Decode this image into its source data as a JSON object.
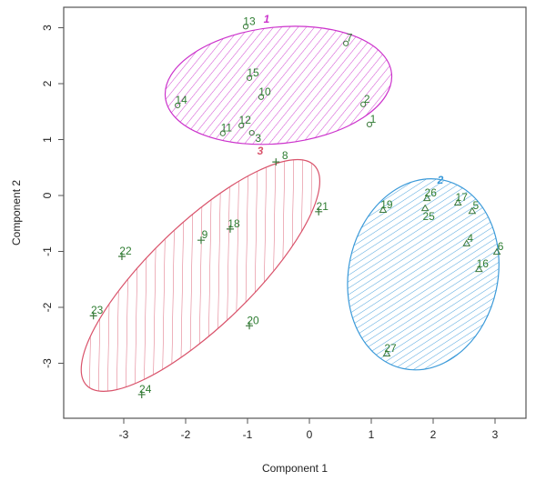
{
  "chart_data": {
    "type": "scatter",
    "title": "",
    "xlabel": "Component 1",
    "ylabel": "Component 2",
    "xlim": [
      -3.9,
      3.5
    ],
    "ylim": [
      -3.9,
      3.4
    ],
    "xticks": [
      -3,
      -2,
      -1,
      0,
      1,
      2,
      3
    ],
    "yticks": [
      -3,
      -2,
      -1,
      0,
      1,
      2,
      3
    ],
    "grid": false,
    "clusters": [
      {
        "label": "1",
        "color": "#cc33cc",
        "marker": "circle",
        "center": [
          -0.5,
          1.97
        ],
        "points": [
          {
            "id": "13",
            "x": -1.03,
            "y": 3.02
          },
          {
            "id": "7",
            "x": 0.59,
            "y": 2.72
          },
          {
            "id": "15",
            "x": -0.97,
            "y": 2.1
          },
          {
            "id": "10",
            "x": -0.78,
            "y": 1.76
          },
          {
            "id": "14",
            "x": -2.13,
            "y": 1.61
          },
          {
            "id": "2",
            "x": 0.87,
            "y": 1.63
          },
          {
            "id": "1",
            "x": 0.97,
            "y": 1.27
          },
          {
            "id": "11",
            "x": -1.4,
            "y": 1.11
          },
          {
            "id": "12",
            "x": -1.1,
            "y": 1.25
          },
          {
            "id": "3",
            "x": -0.93,
            "y": 1.12
          }
        ]
      },
      {
        "label": "2",
        "color": "#3b9ad9",
        "marker": "triangle",
        "center": [
          1.84,
          -1.41
        ],
        "points": [
          {
            "id": "19",
            "x": 1.19,
            "y": -0.26
          },
          {
            "id": "26",
            "x": 1.9,
            "y": -0.05
          },
          {
            "id": "25",
            "x": 1.87,
            "y": -0.23
          },
          {
            "id": "17",
            "x": 2.4,
            "y": -0.13
          },
          {
            "id": "5",
            "x": 2.63,
            "y": -0.28
          },
          {
            "id": "4",
            "x": 2.54,
            "y": -0.86
          },
          {
            "id": "6",
            "x": 3.03,
            "y": -1.01
          },
          {
            "id": "16",
            "x": 2.74,
            "y": -1.32
          },
          {
            "id": "27",
            "x": 1.25,
            "y": -2.83
          }
        ]
      },
      {
        "label": "3",
        "color": "#d9536b",
        "marker": "plus",
        "center": [
          -1.76,
          -1.43
        ],
        "points": [
          {
            "id": "8",
            "x": -0.54,
            "y": 0.6
          },
          {
            "id": "21",
            "x": 0.15,
            "y": -0.29
          },
          {
            "id": "18",
            "x": -1.28,
            "y": -0.6
          },
          {
            "id": "9",
            "x": -1.75,
            "y": -0.8
          },
          {
            "id": "22",
            "x": -3.03,
            "y": -1.09
          },
          {
            "id": "23",
            "x": -3.49,
            "y": -2.15
          },
          {
            "id": "20",
            "x": -0.97,
            "y": -2.33
          },
          {
            "id": "24",
            "x": -2.71,
            "y": -3.56
          }
        ]
      }
    ],
    "point_label_color": "#2e7d32"
  }
}
